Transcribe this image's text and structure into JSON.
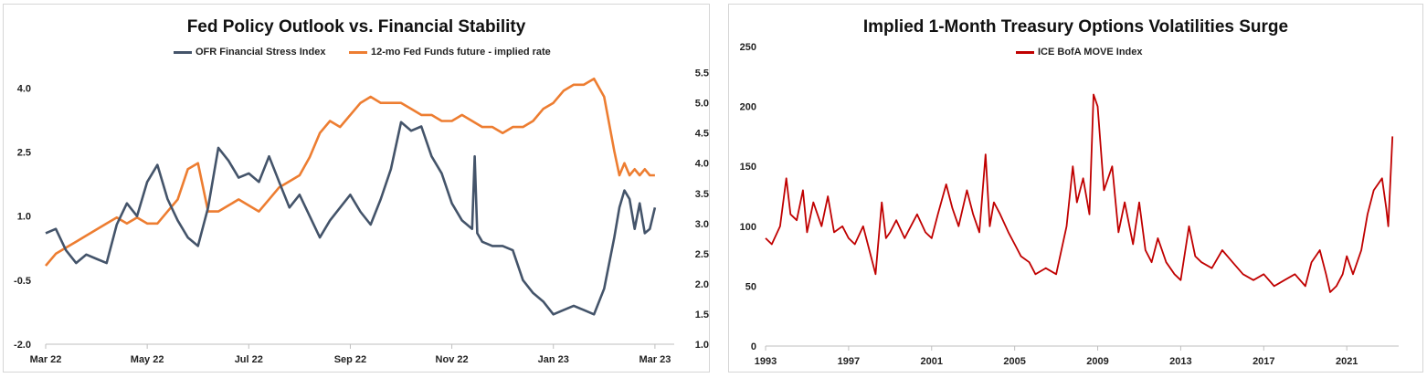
{
  "colors": {
    "stress": "#44546a",
    "fedfunds": "#ed7d31",
    "move": "#c00000"
  },
  "chart_data": [
    {
      "type": "line",
      "title": "Fed Policy Outlook vs. Financial Stability",
      "legend": [
        "OFR Financial Stress Index",
        "12-mo Fed Funds future - implied rate"
      ],
      "x_ticks": [
        "Mar 22",
        "May 22",
        "Jul 22",
        "Sep 22",
        "Nov 22",
        "Jan 23",
        "Mar 23"
      ],
      "x_range": [
        0,
        12.2
      ],
      "y_left": {
        "ticks": [
          "-2.0",
          "-0.5",
          "1.0",
          "2.5",
          "4.0"
        ],
        "range": [
          -2.0,
          4.5
        ]
      },
      "y_right": {
        "ticks": [
          "1.0",
          "1.5",
          "2.0",
          "2.5",
          "3.0",
          "3.5",
          "4.0",
          "4.5",
          "5.0",
          "5.5"
        ],
        "range": [
          1.0,
          5.6
        ]
      },
      "series": [
        {
          "name": "OFR Financial Stress Index",
          "axis": "left",
          "x": [
            0,
            0.2,
            0.4,
            0.6,
            0.8,
            1.0,
            1.2,
            1.4,
            1.6,
            1.8,
            2.0,
            2.2,
            2.4,
            2.6,
            2.8,
            3.0,
            3.2,
            3.4,
            3.6,
            3.8,
            4.0,
            4.2,
            4.4,
            4.6,
            4.8,
            5.0,
            5.2,
            5.4,
            5.6,
            5.8,
            6.0,
            6.2,
            6.4,
            6.6,
            6.8,
            7.0,
            7.2,
            7.4,
            7.6,
            7.8,
            8.0,
            8.2,
            8.4,
            8.45,
            8.5,
            8.6,
            8.8,
            9.0,
            9.2,
            9.4,
            9.6,
            9.8,
            10.0,
            10.2,
            10.4,
            10.6,
            10.8,
            11.0,
            11.2,
            11.3,
            11.4,
            11.5,
            11.6,
            11.7,
            11.8,
            11.9,
            12.0
          ],
          "y": [
            0.6,
            0.7,
            0.2,
            -0.1,
            0.1,
            0.0,
            -0.1,
            0.8,
            1.3,
            1.0,
            1.8,
            2.2,
            1.4,
            0.9,
            0.5,
            0.3,
            1.2,
            2.6,
            2.3,
            1.9,
            2.0,
            1.8,
            2.4,
            1.8,
            1.2,
            1.5,
            1.0,
            0.5,
            0.9,
            1.2,
            1.5,
            1.1,
            0.8,
            1.4,
            2.1,
            3.2,
            3.0,
            3.1,
            2.4,
            2.0,
            1.3,
            0.9,
            0.7,
            2.4,
            0.6,
            0.4,
            0.3,
            0.3,
            0.2,
            -0.5,
            -0.8,
            -1.0,
            -1.3,
            -1.2,
            -1.1,
            -1.2,
            -1.3,
            -0.7,
            0.5,
            1.2,
            1.6,
            1.4,
            0.7,
            1.3,
            0.6,
            0.7,
            1.2
          ]
        },
        {
          "name": "12-mo Fed Funds future - implied rate",
          "axis": "right",
          "x": [
            0,
            0.2,
            0.4,
            0.6,
            0.8,
            1.0,
            1.2,
            1.4,
            1.6,
            1.8,
            2.0,
            2.2,
            2.4,
            2.6,
            2.8,
            3.0,
            3.2,
            3.4,
            3.6,
            3.8,
            4.0,
            4.2,
            4.4,
            4.6,
            4.8,
            5.0,
            5.2,
            5.4,
            5.6,
            5.8,
            6.0,
            6.2,
            6.4,
            6.6,
            6.8,
            7.0,
            7.2,
            7.4,
            7.6,
            7.8,
            8.0,
            8.2,
            8.4,
            8.6,
            8.8,
            9.0,
            9.2,
            9.4,
            9.6,
            9.8,
            10.0,
            10.2,
            10.4,
            10.6,
            10.8,
            11.0,
            11.2,
            11.3,
            11.4,
            11.5,
            11.6,
            11.7,
            11.8,
            11.9,
            12.0
          ],
          "y": [
            2.3,
            2.5,
            2.6,
            2.7,
            2.8,
            2.9,
            3.0,
            3.1,
            3.0,
            3.1,
            3.0,
            3.0,
            3.2,
            3.4,
            3.9,
            4.0,
            3.2,
            3.2,
            3.3,
            3.4,
            3.3,
            3.2,
            3.4,
            3.6,
            3.7,
            3.8,
            4.1,
            4.5,
            4.7,
            4.6,
            4.8,
            5.0,
            5.1,
            5.0,
            5.0,
            5.0,
            4.9,
            4.8,
            4.8,
            4.7,
            4.7,
            4.8,
            4.7,
            4.6,
            4.6,
            4.5,
            4.6,
            4.6,
            4.7,
            4.9,
            5.0,
            5.2,
            5.3,
            5.3,
            5.4,
            5.1,
            4.2,
            3.8,
            4.0,
            3.8,
            3.9,
            3.8,
            3.9,
            3.8,
            3.8
          ]
        }
      ]
    },
    {
      "type": "line",
      "title": "Implied 1-Month Treasury Options Volatilities Surge",
      "legend": [
        "ICE BofA MOVE Index"
      ],
      "x_ticks": [
        "1993",
        "1997",
        "2001",
        "2005",
        "2009",
        "2013",
        "2017",
        "2021"
      ],
      "x_range": [
        1993,
        2023.5
      ],
      "y_ticks": [
        "0",
        "50",
        "100",
        "150",
        "200",
        "250"
      ],
      "y_range": [
        0,
        250
      ],
      "series": [
        {
          "name": "ICE BofA MOVE Index",
          "x": [
            1993.0,
            1993.3,
            1993.7,
            1994.0,
            1994.2,
            1994.5,
            1994.8,
            1995.0,
            1995.3,
            1995.7,
            1996.0,
            1996.3,
            1996.7,
            1997.0,
            1997.3,
            1997.7,
            1998.0,
            1998.3,
            1998.6,
            1998.8,
            1999.0,
            1999.3,
            1999.7,
            2000.0,
            2000.3,
            2000.7,
            2001.0,
            2001.3,
            2001.7,
            2002.0,
            2002.3,
            2002.7,
            2003.0,
            2003.3,
            2003.6,
            2003.8,
            2004.0,
            2004.3,
            2004.7,
            2005.0,
            2005.3,
            2005.7,
            2006.0,
            2006.5,
            2007.0,
            2007.5,
            2007.8,
            2008.0,
            2008.3,
            2008.6,
            2008.8,
            2009.0,
            2009.3,
            2009.7,
            2010.0,
            2010.3,
            2010.7,
            2011.0,
            2011.3,
            2011.6,
            2011.9,
            2012.3,
            2012.7,
            2013.0,
            2013.4,
            2013.7,
            2014.0,
            2014.5,
            2015.0,
            2015.5,
            2016.0,
            2016.5,
            2017.0,
            2017.5,
            2018.0,
            2018.5,
            2019.0,
            2019.3,
            2019.7,
            2020.0,
            2020.2,
            2020.5,
            2020.8,
            2021.0,
            2021.3,
            2021.7,
            2022.0,
            2022.3,
            2022.7,
            2022.9,
            2023.0,
            2023.2
          ],
          "y": [
            90,
            85,
            100,
            140,
            110,
            105,
            130,
            95,
            120,
            100,
            125,
            95,
            100,
            90,
            85,
            100,
            80,
            60,
            120,
            90,
            95,
            105,
            90,
            100,
            110,
            95,
            90,
            110,
            135,
            115,
            100,
            130,
            110,
            95,
            160,
            100,
            120,
            110,
            95,
            85,
            75,
            70,
            60,
            65,
            60,
            100,
            150,
            120,
            140,
            110,
            210,
            200,
            130,
            150,
            95,
            120,
            85,
            120,
            80,
            70,
            90,
            70,
            60,
            55,
            100,
            75,
            70,
            65,
            80,
            70,
            60,
            55,
            60,
            50,
            55,
            60,
            50,
            70,
            80,
            60,
            45,
            50,
            60,
            75,
            60,
            80,
            110,
            130,
            140,
            115,
            100,
            175
          ]
        }
      ]
    }
  ]
}
